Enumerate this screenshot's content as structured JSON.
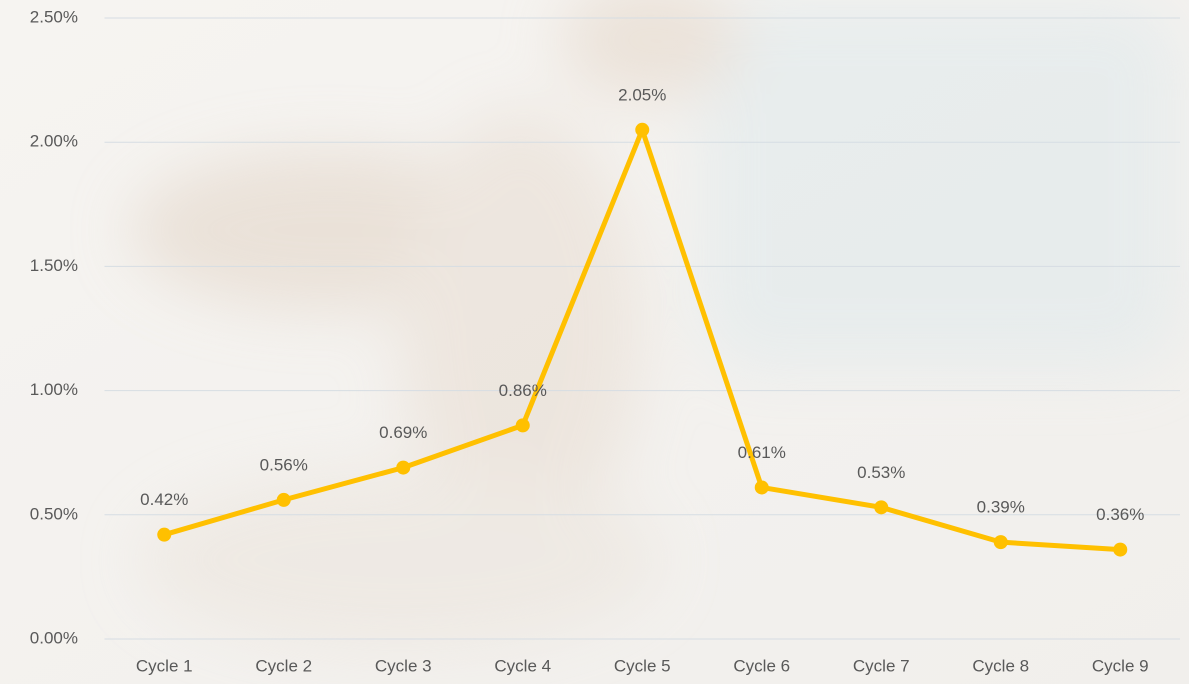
{
  "chart_data": {
    "type": "line",
    "categories": [
      "Cycle 1",
      "Cycle 2",
      "Cycle 3",
      "Cycle 4",
      "Cycle 5",
      "Cycle 6",
      "Cycle 7",
      "Cycle 8",
      "Cycle 9"
    ],
    "values": [
      0.42,
      0.56,
      0.69,
      0.86,
      2.05,
      0.61,
      0.53,
      0.39,
      0.36
    ],
    "value_labels": [
      "0.42%",
      "0.56%",
      "0.69%",
      "0.86%",
      "2.05%",
      "0.61%",
      "0.53%",
      "0.39%",
      "0.36%"
    ],
    "color": "#ffc000",
    "ylim": [
      0,
      2.5
    ],
    "yticks": [
      {
        "value": 0,
        "label": "0.00%"
      },
      {
        "value": 0.5,
        "label": "0.50%"
      },
      {
        "value": 1,
        "label": "1.00%"
      },
      {
        "value": 1.5,
        "label": "1.50%"
      },
      {
        "value": 2,
        "label": "2.00%"
      },
      {
        "value": 2.5,
        "label": "2.50%"
      }
    ],
    "grid": true
  }
}
